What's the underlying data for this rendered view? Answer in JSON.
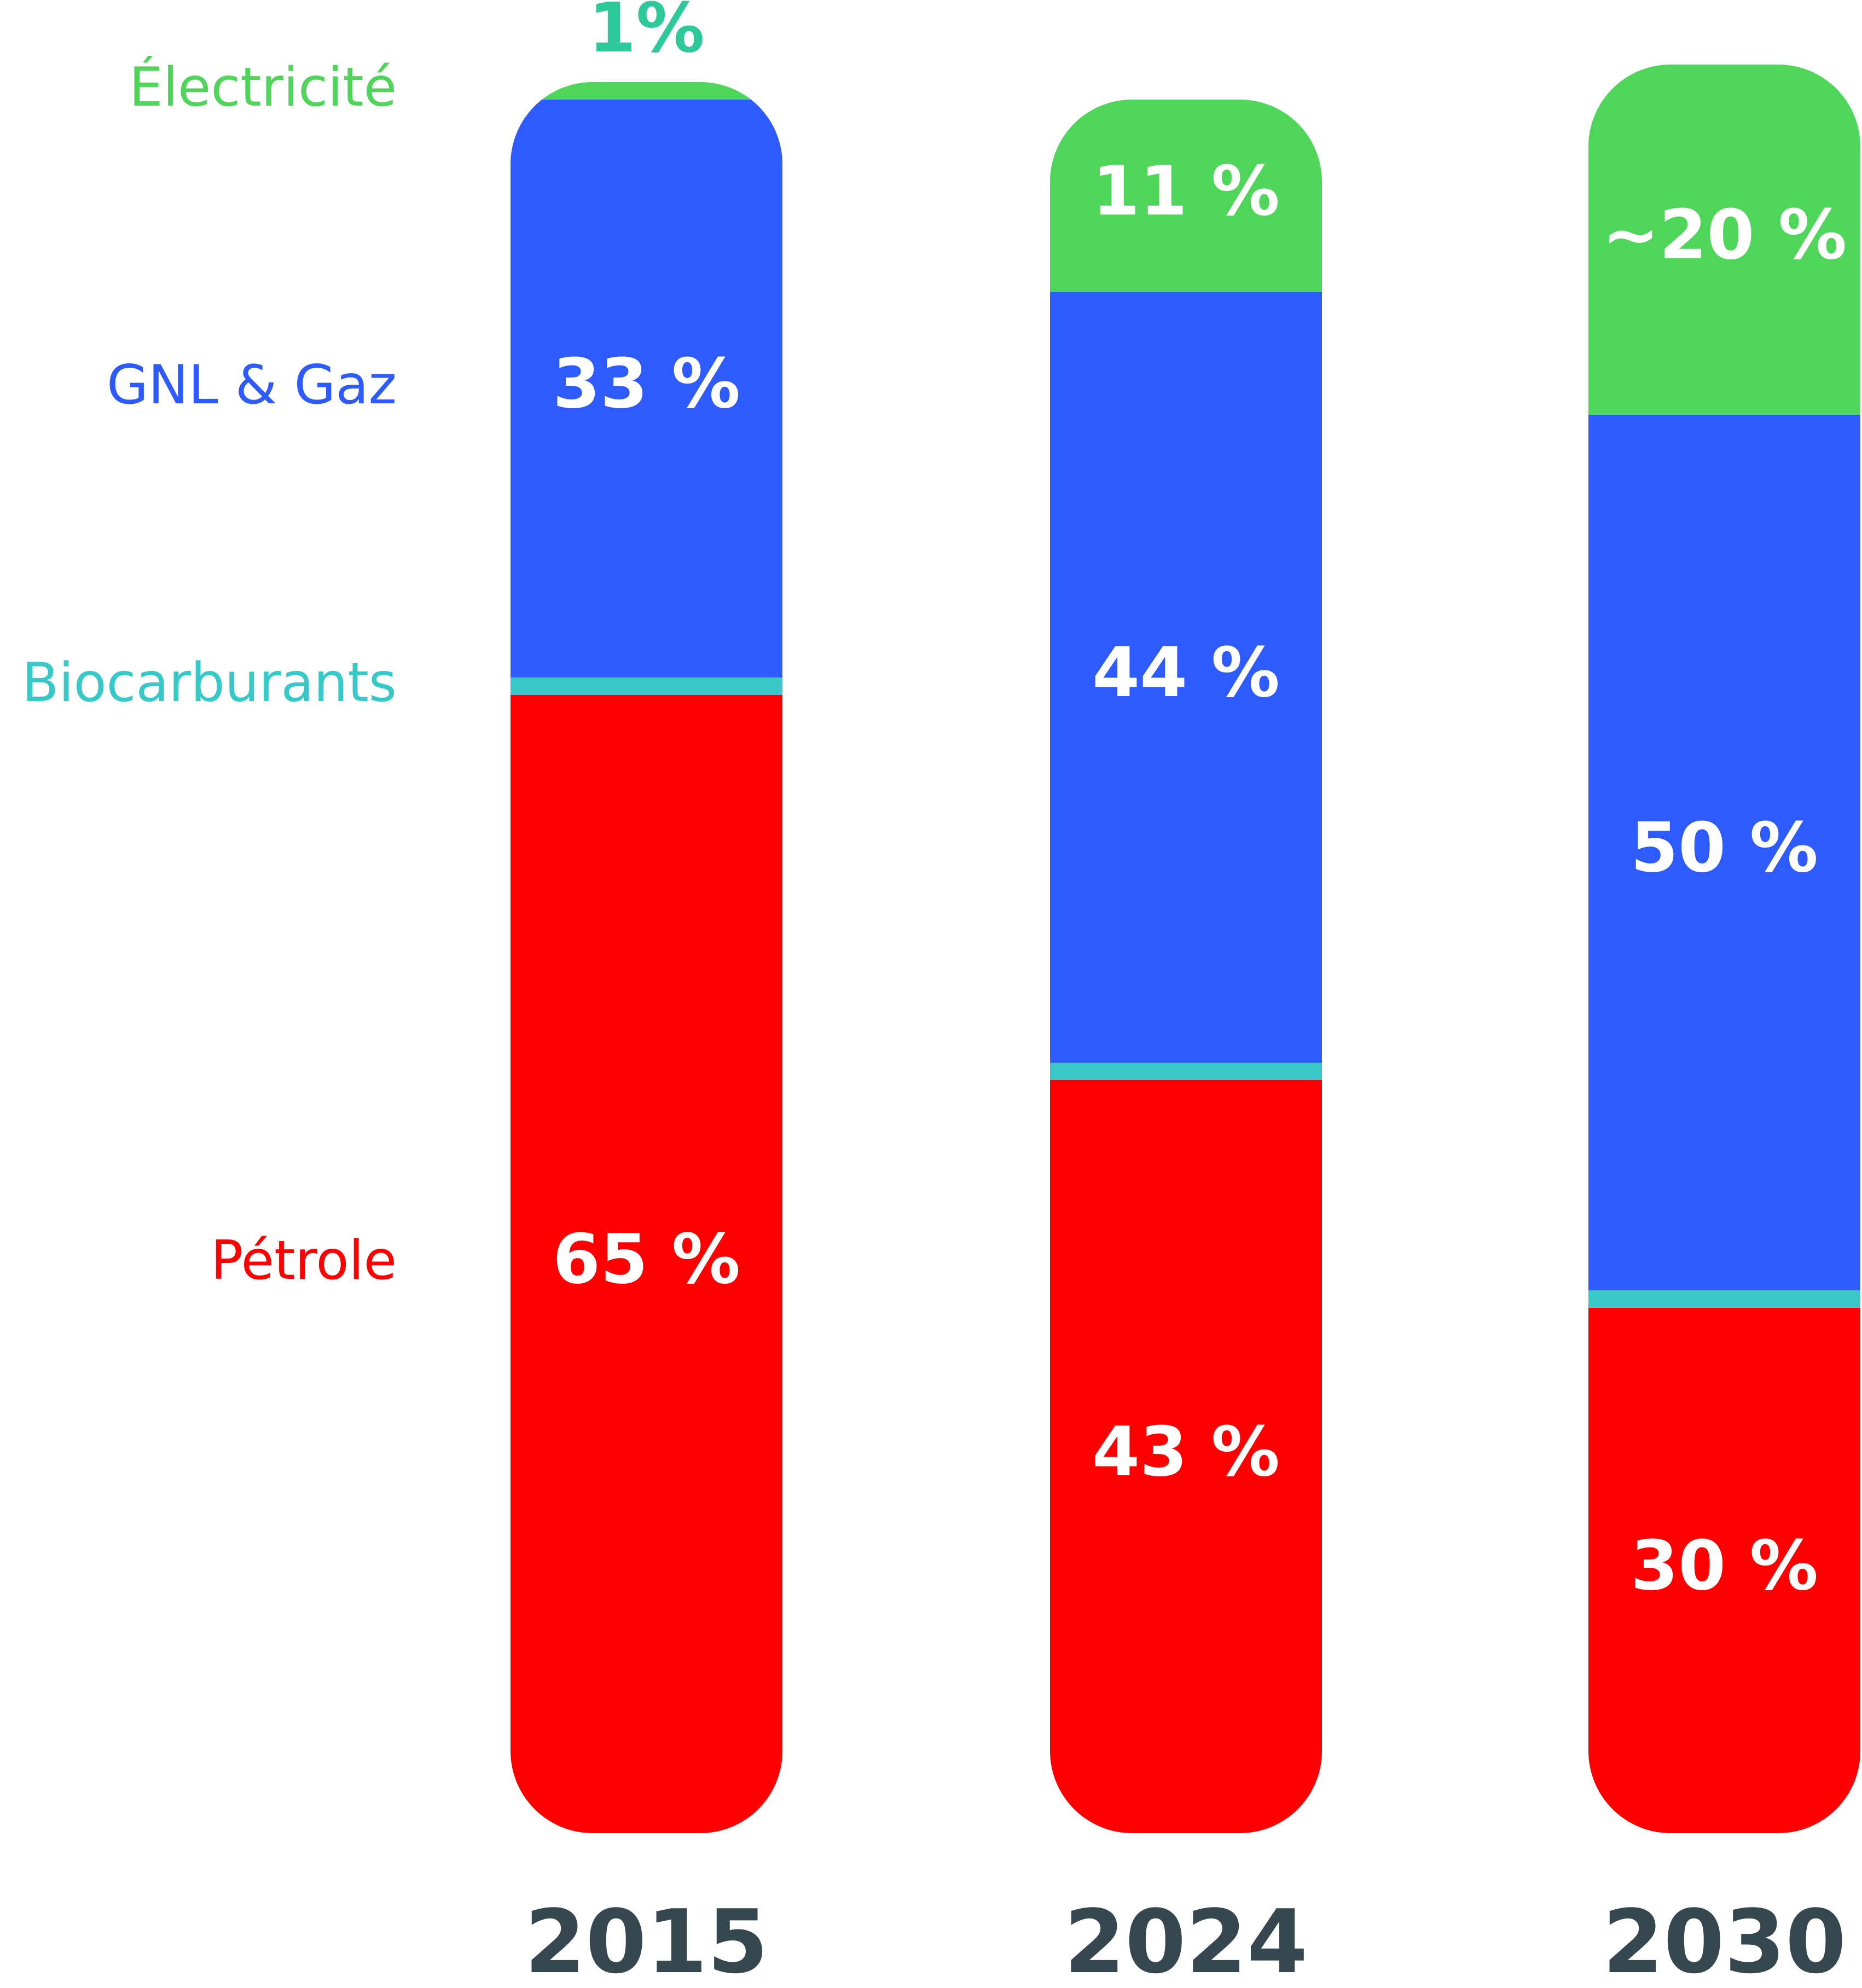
{
  "chart_data": {
    "type": "stacked-bar",
    "categories": [
      "2015",
      "2024",
      "2030"
    ],
    "ylim": [
      0,
      100
    ],
    "series": [
      {
        "name": "Pétrole",
        "color": "#ff0000",
        "values": [
          65,
          43,
          30
        ],
        "value_labels": [
          "65 %",
          "43 %",
          "30 %"
        ]
      },
      {
        "name": "Biocarburants",
        "color": "#38c8c8",
        "values": [
          1,
          1,
          1
        ]
      },
      {
        "name": "GNL & Gaz",
        "color": "#2d5bff",
        "values": [
          33,
          44,
          50
        ],
        "value_labels": [
          "33 %",
          "44 %",
          "50 %"
        ]
      },
      {
        "name": "Électricité",
        "color": "#4fd65a",
        "values": [
          1,
          11,
          20
        ],
        "value_labels": [
          "1%",
          "11 %",
          "~20 %"
        ]
      }
    ]
  }
}
